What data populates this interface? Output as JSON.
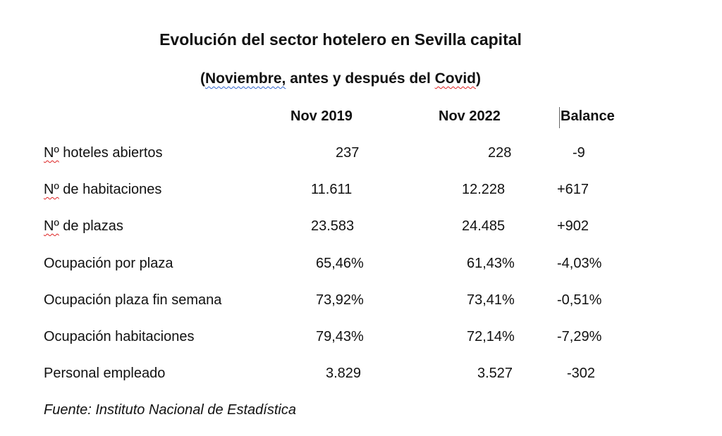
{
  "title": "Evolución del sector hotelero en Sevilla capital",
  "subtitle": {
    "pre": "(",
    "noviembre": "Noviembre,",
    "mid": " antes y después del ",
    "covid": "Covid",
    "post": ")"
  },
  "columns": [
    "Nov 2019",
    "Nov 2022",
    "Balance"
  ],
  "rows": [
    {
      "label_prefix": "Nº",
      "label": " hoteles abiertos",
      "v2019": "237",
      "v2022": "228",
      "balance": "-9"
    },
    {
      "label_prefix": "Nº",
      "label": " de habitaciones",
      "v2019": "11.611",
      "v2022": "12.228",
      "balance": "+617"
    },
    {
      "label_prefix": "Nº",
      "label": " de plazas",
      "v2019": "23.583",
      "v2022": "24.485",
      "balance": "+902"
    },
    {
      "label_prefix": "",
      "label": "Ocupación por plaza",
      "v2019": "65,46%",
      "v2022": "61,43%",
      "balance": "-4,03%"
    },
    {
      "label_prefix": "",
      "label": "Ocupación plaza fin semana",
      "v2019": "73,92%",
      "v2022": "73,41%",
      "balance": "-0,51%"
    },
    {
      "label_prefix": "",
      "label": "Ocupación habitaciones",
      "v2019": "79,43%",
      "v2022": "72,14%",
      "balance": "-7,29%"
    },
    {
      "label_prefix": "",
      "label": "Personal empleado",
      "v2019": "3.829",
      "v2022": "3.527",
      "balance": "-302"
    }
  ],
  "source": "Fuente: Instituto Nacional de Estadística"
}
